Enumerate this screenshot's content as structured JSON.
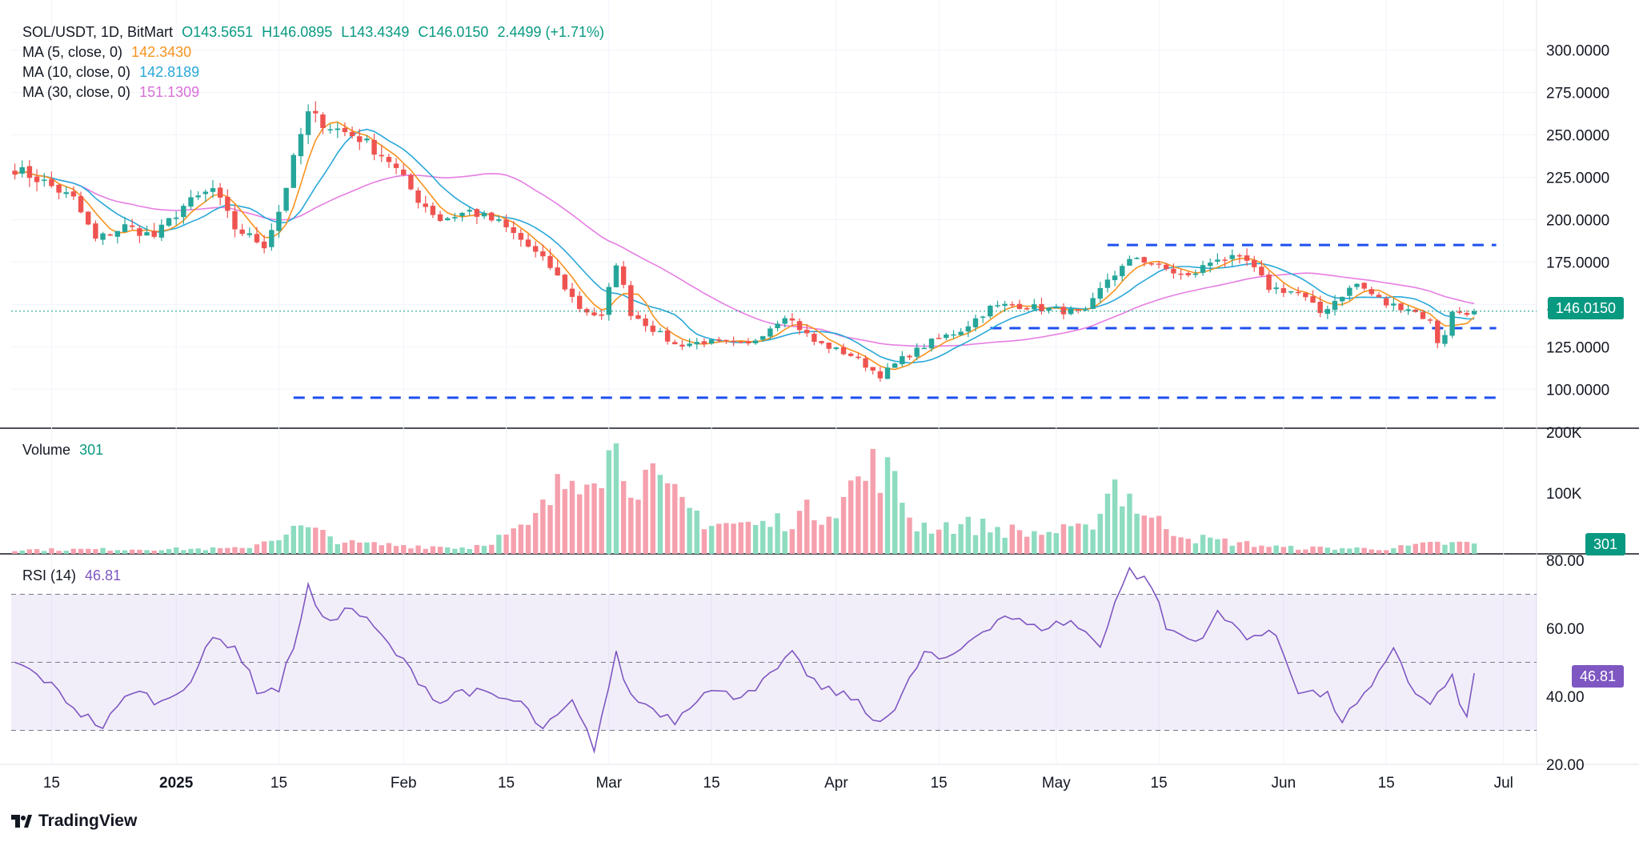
{
  "header": {
    "symbol": "SOL/USDT, 1D, BitMart",
    "open": "O143.5651",
    "high": "H146.0895",
    "low": "L143.4349",
    "close": "C146.0150",
    "change": "2.4499 (+1.71%)",
    "ma5_label": "MA (5, close, 0)",
    "ma5_value": "142.3430",
    "ma10_label": "MA (10, close, 0)",
    "ma10_value": "142.8189",
    "ma30_label": "MA (30, close, 0)",
    "ma30_value": "151.1309"
  },
  "volume_pane": {
    "label": "Volume",
    "value": "301",
    "badge": "301"
  },
  "rsi_pane": {
    "label": "RSI (14)",
    "value": "46.81",
    "badge": "46.81"
  },
  "price_badge": "146.0150",
  "branding": {
    "logo_text": "TradingView"
  },
  "colors": {
    "up": "#26a69a",
    "down": "#ef5350",
    "up_light": "#8ddcc0",
    "down_light": "#f6a0ad",
    "ma5": "#f7931e",
    "ma10": "#29a8d8",
    "ma30": "#e67ee2",
    "rsi": "#7e57c2",
    "levels": "#1e4ff0",
    "price_line": "#089981"
  },
  "chart_data": [
    {
      "type": "candlestick",
      "title": "SOL/USDT, 1D, BitMart",
      "x_range": [
        "2024-12-10",
        "2025-07-05"
      ],
      "x_ticks": [
        "15",
        "2025",
        "15",
        "Feb",
        "15",
        "Mar",
        "15",
        "Apr",
        "15",
        "May",
        "15",
        "Jun",
        "15",
        "Jul"
      ],
      "y_ticks": [
        "100.0000",
        "125.0000",
        "150.0000",
        "175.0000",
        "200.0000",
        "225.0000",
        "250.0000",
        "275.0000",
        "300.0000"
      ],
      "ylim": [
        77,
        320
      ],
      "support_resistance_levels": [
        185,
        136,
        95
      ],
      "last_close": 146.015,
      "close_anchors": [
        [
          "2024-12-10",
          230
        ],
        [
          "2024-12-14",
          222
        ],
        [
          "2024-12-18",
          212
        ],
        [
          "2024-12-21",
          188
        ],
        [
          "2024-12-25",
          196
        ],
        [
          "2024-12-29",
          190
        ],
        [
          "2025-01-02",
          208
        ],
        [
          "2025-01-06",
          218
        ],
        [
          "2025-01-09",
          195
        ],
        [
          "2025-01-13",
          185
        ],
        [
          "2025-01-15",
          205
        ],
        [
          "2025-01-18",
          250
        ],
        [
          "2025-01-19",
          262
        ],
        [
          "2025-01-22",
          255
        ],
        [
          "2025-01-26",
          248
        ],
        [
          "2025-01-30",
          235
        ],
        [
          "2025-02-03",
          212
        ],
        [
          "2025-02-06",
          200
        ],
        [
          "2025-02-10",
          205
        ],
        [
          "2025-02-14",
          198
        ],
        [
          "2025-02-17",
          188
        ],
        [
          "2025-02-21",
          172
        ],
        [
          "2025-02-25",
          148
        ],
        [
          "2025-02-28",
          142
        ],
        [
          "2025-03-02",
          175
        ],
        [
          "2025-03-04",
          145
        ],
        [
          "2025-03-10",
          126
        ],
        [
          "2025-03-14",
          128
        ],
        [
          "2025-03-20",
          126
        ],
        [
          "2025-03-25",
          144
        ],
        [
          "2025-03-29",
          128
        ],
        [
          "2025-04-03",
          120
        ],
        [
          "2025-04-07",
          108
        ],
        [
          "2025-04-10",
          118
        ],
        [
          "2025-04-14",
          128
        ],
        [
          "2025-04-18",
          135
        ],
        [
          "2025-04-22",
          148
        ],
        [
          "2025-04-25",
          150
        ],
        [
          "2025-04-30",
          147
        ],
        [
          "2025-05-05",
          145
        ],
        [
          "2025-05-08",
          165
        ],
        [
          "2025-05-12",
          178
        ],
        [
          "2025-05-15",
          172
        ],
        [
          "2025-05-19",
          166
        ],
        [
          "2025-05-23",
          178
        ],
        [
          "2025-05-27",
          175
        ],
        [
          "2025-05-30",
          160
        ],
        [
          "2025-06-03",
          157
        ],
        [
          "2025-06-06",
          145
        ],
        [
          "2025-06-09",
          156
        ],
        [
          "2025-06-11",
          162
        ],
        [
          "2025-06-15",
          150
        ],
        [
          "2025-06-18",
          148
        ],
        [
          "2025-06-21",
          140
        ],
        [
          "2025-06-22",
          128
        ],
        [
          "2025-06-23",
          133
        ],
        [
          "2025-06-24",
          145
        ],
        [
          "2025-06-27",
          146
        ]
      ],
      "series": [
        {
          "name": "MA (5, close, 0)",
          "last": 142.343
        },
        {
          "name": "MA (10, close, 0)",
          "last": 142.8189
        },
        {
          "name": "MA (30, close, 0)",
          "last": 151.1309
        }
      ]
    },
    {
      "type": "bar",
      "title": "Volume",
      "y_ticks": [
        "100K",
        "200K"
      ],
      "ylim": [
        0,
        200
      ],
      "unit": "K",
      "last": 301,
      "volume_anchors": [
        [
          "2024-12-10",
          8
        ],
        [
          "2025-01-10",
          10
        ],
        [
          "2025-01-18",
          50
        ],
        [
          "2025-01-25",
          20
        ],
        [
          "2025-02-10",
          12
        ],
        [
          "2025-02-18",
          50
        ],
        [
          "2025-02-26",
          190
        ],
        [
          "2025-03-02",
          190
        ],
        [
          "2025-03-08",
          120
        ],
        [
          "2025-03-15",
          60
        ],
        [
          "2025-03-22",
          55
        ],
        [
          "2025-03-31",
          90
        ],
        [
          "2025-04-07",
          175
        ],
        [
          "2025-04-12",
          55
        ],
        [
          "2025-04-20",
          55
        ],
        [
          "2025-04-27",
          40
        ],
        [
          "2025-05-05",
          45
        ],
        [
          "2025-05-09",
          140
        ],
        [
          "2025-05-14",
          65
        ],
        [
          "2025-05-20",
          30
        ],
        [
          "2025-06-01",
          12
        ],
        [
          "2025-06-15",
          10
        ],
        [
          "2025-06-22",
          20
        ],
        [
          "2025-06-27",
          20
        ]
      ]
    },
    {
      "type": "line",
      "title": "RSI (14)",
      "y_ticks": [
        "20.00",
        "40.00",
        "60.00",
        "80.00"
      ],
      "ylim": [
        20,
        80
      ],
      "band": [
        30,
        70
      ],
      "midline": 50,
      "last": 46.81,
      "rsi_anchors": [
        [
          "2024-12-10",
          50
        ],
        [
          "2024-12-14",
          45
        ],
        [
          "2024-12-19",
          35
        ],
        [
          "2024-12-22",
          31
        ],
        [
          "2024-12-26",
          42
        ],
        [
          "2024-12-30",
          38
        ],
        [
          "2025-01-03",
          45
        ],
        [
          "2025-01-06",
          57
        ],
        [
          "2025-01-09",
          55
        ],
        [
          "2025-01-12",
          42
        ],
        [
          "2025-01-15",
          42
        ],
        [
          "2025-01-17",
          55
        ],
        [
          "2025-01-19",
          72
        ],
        [
          "2025-01-21",
          62
        ],
        [
          "2025-01-25",
          66
        ],
        [
          "2025-01-28",
          60
        ],
        [
          "2025-02-01",
          50
        ],
        [
          "2025-02-03",
          45
        ],
        [
          "2025-02-06",
          38
        ],
        [
          "2025-02-09",
          42
        ],
        [
          "2025-02-13",
          40
        ],
        [
          "2025-02-17",
          38
        ],
        [
          "2025-02-20",
          30
        ],
        [
          "2025-02-24",
          38
        ],
        [
          "2025-02-27",
          25
        ],
        [
          "2025-03-02",
          52
        ],
        [
          "2025-03-04",
          40
        ],
        [
          "2025-03-10",
          33
        ],
        [
          "2025-03-14",
          42
        ],
        [
          "2025-03-18",
          40
        ],
        [
          "2025-03-22",
          44
        ],
        [
          "2025-03-26",
          52
        ],
        [
          "2025-03-30",
          42
        ],
        [
          "2025-04-03",
          40
        ],
        [
          "2025-04-06",
          33
        ],
        [
          "2025-04-09",
          36
        ],
        [
          "2025-04-13",
          53
        ],
        [
          "2025-04-16",
          50
        ],
        [
          "2025-04-20",
          58
        ],
        [
          "2025-04-24",
          64
        ],
        [
          "2025-04-28",
          60
        ],
        [
          "2025-05-03",
          62
        ],
        [
          "2025-05-07",
          55
        ],
        [
          "2025-05-09",
          68
        ],
        [
          "2025-05-11",
          77
        ],
        [
          "2025-05-14",
          73
        ],
        [
          "2025-05-16",
          60
        ],
        [
          "2025-05-20",
          56
        ],
        [
          "2025-05-23",
          64
        ],
        [
          "2025-05-27",
          58
        ],
        [
          "2025-05-31",
          58
        ],
        [
          "2025-06-03",
          42
        ],
        [
          "2025-06-07",
          40
        ],
        [
          "2025-06-09",
          33
        ],
        [
          "2025-06-13",
          42
        ],
        [
          "2025-06-16",
          55
        ],
        [
          "2025-06-19",
          40
        ],
        [
          "2025-06-21",
          38
        ],
        [
          "2025-06-24",
          45
        ],
        [
          "2025-06-26",
          33
        ],
        [
          "2025-06-27",
          30
        ],
        [
          "2025-06-29",
          46
        ],
        [
          "2025-07-01",
          47
        ]
      ]
    }
  ]
}
